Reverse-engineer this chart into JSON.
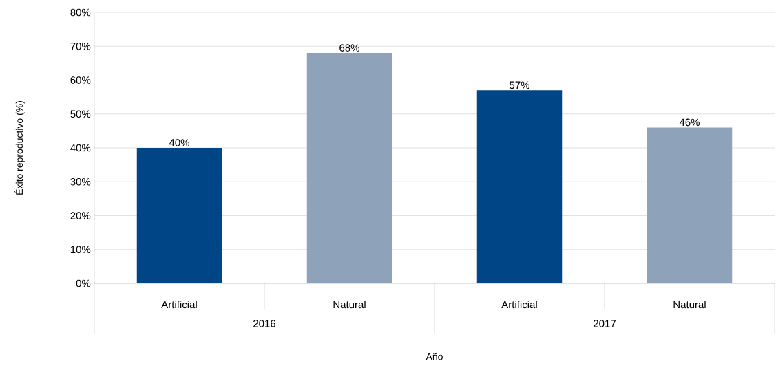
{
  "chart_data": {
    "type": "bar",
    "xlabel": "Año",
    "ylabel": "Éxito reproductivo (%)",
    "categories": [
      "Artificial",
      "Natural",
      "Artificial",
      "Natural"
    ],
    "values": [
      40,
      68,
      57,
      46
    ],
    "colors": [
      "#004586",
      "#8ea2b9",
      "#004586",
      "#8ea2b9"
    ],
    "value_labels": [
      "40%",
      "68%",
      "57%",
      "46%"
    ],
    "annotations": [
      "2016",
      "2017"
    ],
    "ylim": [
      0,
      80
    ],
    "yticks": [
      {
        "value": 0,
        "label": "0%"
      },
      {
        "value": 10,
        "label": "10%"
      },
      {
        "value": 20,
        "label": "20%"
      },
      {
        "value": 30,
        "label": "30%"
      },
      {
        "value": 40,
        "label": "40%"
      },
      {
        "value": 50,
        "label": "50%"
      },
      {
        "value": 60,
        "label": "60%"
      },
      {
        "value": 70,
        "label": "70%"
      },
      {
        "value": 80,
        "label": "80%"
      }
    ],
    "grid": "y"
  }
}
